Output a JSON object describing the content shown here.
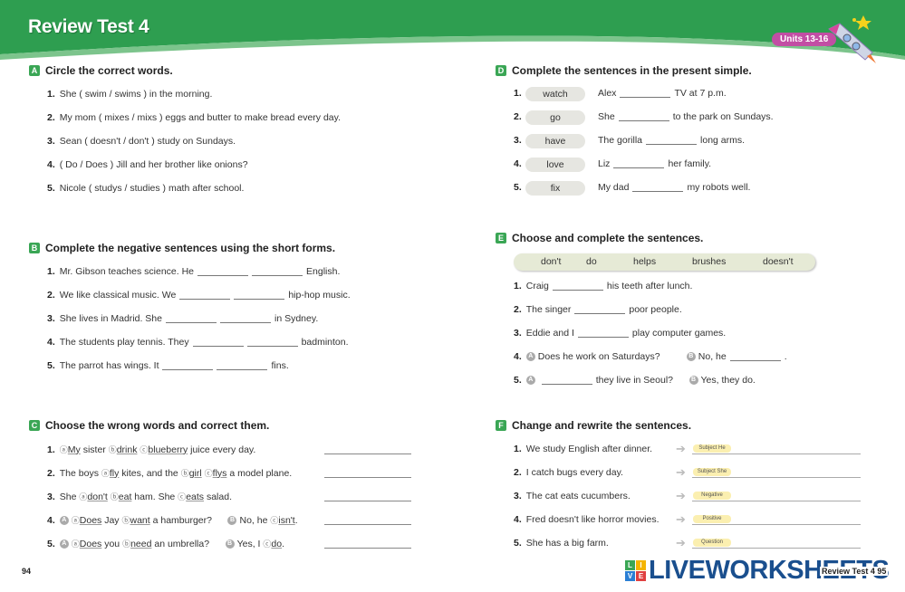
{
  "header": {
    "title": "Review Test 4",
    "units": "Units 13-16",
    "color": "#2e9e50"
  },
  "sections": {
    "A": {
      "letter": "A",
      "title": "Circle the correct words.",
      "items": [
        "She ( swim / swims ) in the morning.",
        "My mom ( mixes / mixs ) eggs and butter to make bread every day.",
        "Sean ( doesn't / don't ) study on Sundays.",
        "( Do / Does ) Jill and her brother like onions?",
        "Nicole ( studys / studies ) math after school."
      ]
    },
    "B": {
      "letter": "B",
      "title": "Complete the negative sentences using the short forms.",
      "items": [
        {
          "pre": "Mr. Gibson teaches science. He",
          "post": "English."
        },
        {
          "pre": "We like classical music. We",
          "post": "hip-hop music."
        },
        {
          "pre": "She lives in Madrid. She",
          "post": "in Sydney."
        },
        {
          "pre": "The students play tennis. They",
          "post": "badminton."
        },
        {
          "pre": "The parrot has wings. It",
          "post": "fins."
        }
      ]
    },
    "C": {
      "letter": "C",
      "title": "Choose the wrong words and correct them.",
      "items": [
        [
          {
            "m": "ⓐ",
            "u": "My"
          },
          {
            "t": " sister "
          },
          {
            "m": "ⓑ",
            "u": "drink"
          },
          {
            "t": " "
          },
          {
            "m": "ⓒ",
            "u": "blueberry"
          },
          {
            "t": " juice every day."
          }
        ],
        [
          {
            "t": "The boys "
          },
          {
            "m": "ⓐ",
            "u": "fly"
          },
          {
            "t": " kites, and the "
          },
          {
            "m": "ⓑ",
            "u": "girl"
          },
          {
            "t": " "
          },
          {
            "m": "ⓒ",
            "u": "flys"
          },
          {
            "t": " a model plane."
          }
        ],
        [
          {
            "t": "She "
          },
          {
            "m": "ⓐ",
            "u": "don't"
          },
          {
            "t": " "
          },
          {
            "m": "ⓑ",
            "u": "eat"
          },
          {
            "t": " ham. She "
          },
          {
            "m": "ⓒ",
            "u": "eats"
          },
          {
            "t": " salad."
          }
        ],
        [
          {
            "s": "A"
          },
          {
            "m": "ⓐ",
            "u": "Does"
          },
          {
            "t": " Jay "
          },
          {
            "m": "ⓑ",
            "u": "want"
          },
          {
            "t": " a hamburger?      "
          },
          {
            "s": "B"
          },
          {
            "t": "No, he "
          },
          {
            "m": "ⓒ",
            "u": "isn't"
          },
          {
            "t": "."
          }
        ],
        [
          {
            "s": "A"
          },
          {
            "m": "ⓐ",
            "u": "Does"
          },
          {
            "t": " you "
          },
          {
            "m": "ⓑ",
            "u": "need"
          },
          {
            "t": " an umbrella?      "
          },
          {
            "s": "B"
          },
          {
            "t": "Yes, I "
          },
          {
            "m": "ⓒ",
            "u": "do"
          },
          {
            "t": "."
          }
        ]
      ]
    },
    "D": {
      "letter": "D",
      "title": "Complete the sentences in the present simple.",
      "items": [
        {
          "verb": "watch",
          "pre": "Alex",
          "post": "TV at 7 p.m."
        },
        {
          "verb": "go",
          "pre": "She",
          "post": "to the park on Sundays."
        },
        {
          "verb": "have",
          "pre": "The gorilla",
          "post": "long arms."
        },
        {
          "verb": "love",
          "pre": "Liz",
          "post": "her family."
        },
        {
          "verb": "fix",
          "pre": "My dad",
          "post": "my robots well."
        }
      ]
    },
    "E": {
      "letter": "E",
      "title": "Choose and complete the sentences.",
      "bank": [
        "don't",
        "do",
        "helps",
        "brushes",
        "doesn't"
      ],
      "items": [
        [
          {
            "t": "Craig"
          },
          {
            "b": 1
          },
          {
            "t": "his teeth after lunch."
          }
        ],
        [
          {
            "t": "The singer"
          },
          {
            "b": 1
          },
          {
            "t": "poor people."
          }
        ],
        [
          {
            "t": "Eddie and I"
          },
          {
            "b": 1
          },
          {
            "t": "play computer games."
          }
        ],
        [
          {
            "s": "A"
          },
          {
            "t": "Does he work on Saturdays?          "
          },
          {
            "s": "B"
          },
          {
            "t": "No, he"
          },
          {
            "b": 1
          },
          {
            "t": "."
          }
        ],
        [
          {
            "s": "A"
          },
          {
            "b": 1
          },
          {
            "t": "they live in Seoul?      "
          },
          {
            "s": "B"
          },
          {
            "t": "Yes, they do."
          }
        ]
      ]
    },
    "F": {
      "letter": "F",
      "title": "Change and rewrite the sentences.",
      "items": [
        {
          "text": "We study English after dinner.",
          "hint": "Subject He"
        },
        {
          "text": "I catch bugs every day.",
          "hint": "Subject She"
        },
        {
          "text": "The cat eats cucumbers.",
          "hint": "Negative"
        },
        {
          "text": "Fred doesn't like horror movies.",
          "hint": "Positive"
        },
        {
          "text": "She has a big farm.",
          "hint": "Question"
        }
      ]
    }
  },
  "footer": {
    "left_page": "94",
    "right_page": "Review Test 4  95",
    "watermark": "LIVEWORKSHEETS",
    "watermark_letters": [
      "L",
      "I",
      "V",
      "E"
    ]
  }
}
